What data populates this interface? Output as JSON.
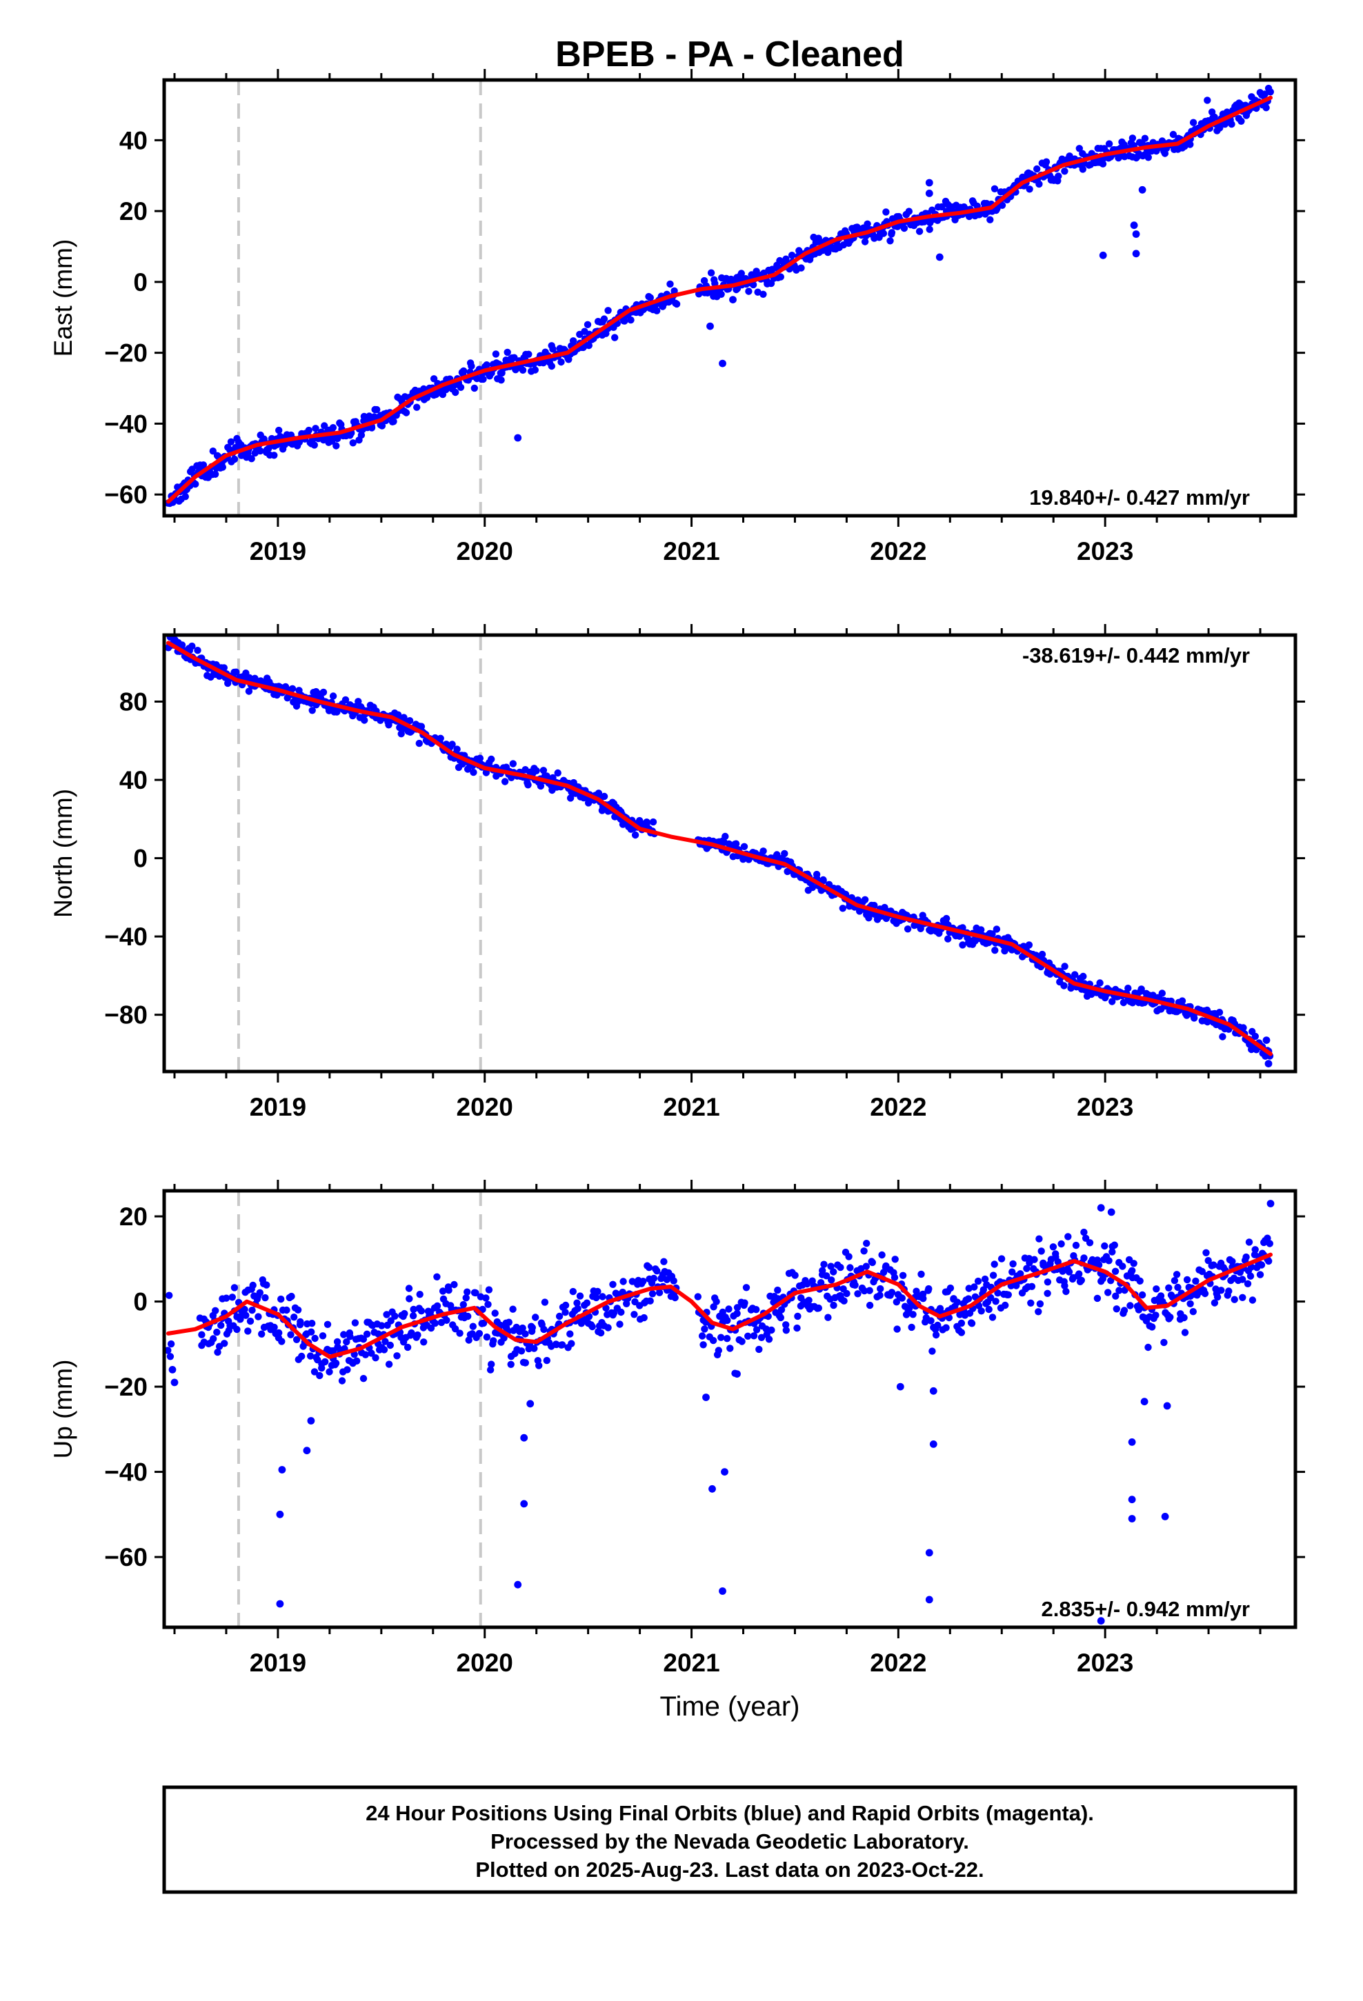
{
  "title": "BPEB  - PA - Cleaned",
  "xlabel": "Time (year)",
  "footer": {
    "line1": "24 Hour Positions Using Final Orbits (blue) and Rapid Orbits (magenta).",
    "line2": "Processed by the Nevada Geodetic Laboratory.",
    "line3": "Plotted on 2025-Aug-23. Last data on 2023-Oct-22."
  },
  "colors": {
    "points": "#0000ff",
    "fit": "#ff0000",
    "steps": "#c8c8c8",
    "axes": "#000000"
  },
  "chart_data": [
    {
      "type": "scatter",
      "ylabel": "East (mm)",
      "rate_label": "19.840+/- 0.427 mm/yr",
      "rate_position": "bottom-right",
      "xlim": [
        2018.45,
        2023.92
      ],
      "ylim": [
        -66,
        57
      ],
      "yticks": [
        -60,
        -40,
        -20,
        0,
        20,
        40
      ],
      "xticks": [
        2019,
        2020,
        2021,
        2022,
        2023
      ],
      "xtick_labels": [
        "2019",
        "2020",
        "2021",
        "2022",
        "2023"
      ],
      "step_lines": [
        2018.81,
        2019.98
      ],
      "fit": {
        "x": [
          2018.47,
          2018.6,
          2018.75,
          2018.9,
          2019.1,
          2019.3,
          2019.5,
          2019.65,
          2019.8,
          2020.0,
          2020.2,
          2020.4,
          2020.55,
          2020.7,
          2020.9,
          2021.05,
          2021.2,
          2021.4,
          2021.55,
          2021.7,
          2021.85,
          2022.0,
          2022.15,
          2022.3,
          2022.45,
          2022.6,
          2022.8,
          2023.0,
          2023.2,
          2023.35,
          2023.5,
          2023.65,
          2023.8
        ],
        "y": [
          -62,
          -55,
          -49,
          -46,
          -44,
          -42.5,
          -39,
          -33,
          -29,
          -25,
          -22.5,
          -20,
          -14,
          -8,
          -4,
          -2,
          -1,
          2,
          8,
          12,
          14,
          17,
          18.5,
          19.5,
          21,
          28,
          33,
          36,
          38,
          39,
          44,
          48,
          52
        ]
      },
      "points": {
        "model": [
          [
            2018.47,
            -62
          ],
          [
            2018.6,
            -55
          ],
          [
            2018.75,
            -49
          ],
          [
            2018.9,
            -46
          ],
          [
            2019.1,
            -44
          ],
          [
            2019.3,
            -42.5
          ],
          [
            2019.5,
            -39
          ],
          [
            2019.65,
            -33
          ],
          [
            2019.8,
            -29
          ],
          [
            2020.0,
            -25
          ],
          [
            2020.2,
            -22.5
          ],
          [
            2020.4,
            -20
          ],
          [
            2020.55,
            -14
          ],
          [
            2020.7,
            -8
          ],
          [
            2020.9,
            -4
          ],
          [
            2021.05,
            -2
          ],
          [
            2021.2,
            -1
          ],
          [
            2021.4,
            2
          ],
          [
            2021.55,
            8
          ],
          [
            2021.7,
            12
          ],
          [
            2021.85,
            14
          ],
          [
            2022.0,
            17
          ],
          [
            2022.15,
            18.5
          ],
          [
            2022.3,
            19.5
          ],
          [
            2022.45,
            21
          ],
          [
            2022.6,
            28
          ],
          [
            2022.8,
            33
          ],
          [
            2023.0,
            36
          ],
          [
            2023.2,
            38
          ],
          [
            2023.35,
            39
          ],
          [
            2023.5,
            44
          ],
          [
            2023.65,
            48
          ],
          [
            2023.8,
            52
          ]
        ],
        "gaps": [
          [
            2020.93,
            2021.03
          ],
          [
            2023.81,
            2023.92
          ]
        ],
        "dense_gaps": [],
        "scatter_sd": 1.6,
        "seasonal_amp": 0,
        "spacing_days": 2,
        "seed": 11,
        "outliers": [
          [
            2020.16,
            -44
          ],
          [
            2021.09,
            -12.5
          ],
          [
            2021.15,
            -23
          ],
          [
            2022.2,
            7
          ],
          [
            2022.99,
            7.5
          ],
          [
            2023.15,
            8
          ],
          [
            2023.14,
            16
          ],
          [
            2023.15,
            13.5
          ],
          [
            2023.18,
            26
          ],
          [
            2021.2,
            -5
          ],
          [
            2022.15,
            28
          ],
          [
            2022.15,
            25
          ]
        ]
      }
    },
    {
      "type": "scatter",
      "ylabel": "North (mm)",
      "rate_label": "-38.619+/- 0.442 mm/yr",
      "rate_position": "top-right",
      "xlim": [
        2018.45,
        2023.92
      ],
      "ylim": [
        -109,
        114
      ],
      "yticks": [
        -80,
        -40,
        0,
        40,
        80
      ],
      "xticks": [
        2019,
        2020,
        2021,
        2022,
        2023
      ],
      "xtick_labels": [
        "2019",
        "2020",
        "2021",
        "2022",
        "2023"
      ],
      "step_lines": [
        2018.81,
        2019.98
      ],
      "fit": {
        "x": [
          2018.47,
          2018.6,
          2018.8,
          2019.0,
          2019.2,
          2019.4,
          2019.55,
          2019.7,
          2019.85,
          2020.0,
          2020.2,
          2020.4,
          2020.55,
          2020.75,
          2020.9,
          2021.1,
          2021.3,
          2021.45,
          2021.6,
          2021.8,
          2022.0,
          2022.2,
          2022.4,
          2022.55,
          2022.7,
          2022.85,
          2023.0,
          2023.2,
          2023.4,
          2023.6,
          2023.8
        ],
        "y": [
          110,
          102,
          91,
          86,
          80,
          75,
          72,
          64,
          53,
          46,
          42,
          37,
          30,
          15,
          11,
          7,
          1,
          -3,
          -12,
          -24,
          -30,
          -35,
          -40,
          -44,
          -54,
          -64,
          -68,
          -72,
          -77,
          -85,
          -100
        ]
      },
      "points": {
        "model": [
          [
            2018.47,
            110
          ],
          [
            2018.6,
            102
          ],
          [
            2018.8,
            91
          ],
          [
            2019.0,
            86
          ],
          [
            2019.2,
            80
          ],
          [
            2019.4,
            75
          ],
          [
            2019.55,
            72
          ],
          [
            2019.7,
            64
          ],
          [
            2019.85,
            53
          ],
          [
            2020.0,
            46
          ],
          [
            2020.2,
            42
          ],
          [
            2020.4,
            37
          ],
          [
            2020.55,
            30
          ],
          [
            2020.75,
            15
          ],
          [
            2020.9,
            11
          ],
          [
            2021.1,
            7
          ],
          [
            2021.3,
            1
          ],
          [
            2021.45,
            -3
          ],
          [
            2021.6,
            -12
          ],
          [
            2021.8,
            -24
          ],
          [
            2022.0,
            -30
          ],
          [
            2022.2,
            -35
          ],
          [
            2022.4,
            -40
          ],
          [
            2022.55,
            -44
          ],
          [
            2022.7,
            -54
          ],
          [
            2022.85,
            -64
          ],
          [
            2023.0,
            -68
          ],
          [
            2023.2,
            -72
          ],
          [
            2023.4,
            -77
          ],
          [
            2023.6,
            -85
          ],
          [
            2023.8,
            -100
          ]
        ],
        "gaps": [
          [
            2020.82,
            2021.03
          ],
          [
            2023.81,
            2023.92
          ]
        ],
        "dense_gaps": [],
        "scatter_sd": 2.2,
        "seasonal_amp": 0,
        "spacing_days": 2,
        "seed": 23,
        "outliers": [
          [
            2023.79,
            -105
          ],
          [
            2023.78,
            -93
          ],
          [
            2018.48,
            113
          ]
        ]
      }
    },
    {
      "type": "scatter",
      "ylabel": "Up (mm)",
      "rate_label": "2.835+/- 0.942 mm/yr",
      "rate_position": "bottom-right",
      "xlim": [
        2018.45,
        2023.92
      ],
      "ylim": [
        -76.5,
        26
      ],
      "yticks": [
        -60,
        -40,
        -20,
        0,
        20
      ],
      "xticks": [
        2019,
        2020,
        2021,
        2022,
        2023
      ],
      "xtick_labels": [
        "2019",
        "2020",
        "2021",
        "2022",
        "2023"
      ],
      "step_lines": [
        2018.81,
        2019.98
      ],
      "fit": {
        "x": [
          2018.47,
          2018.6,
          2018.75,
          2018.85,
          2019.0,
          2019.15,
          2019.25,
          2019.4,
          2019.6,
          2019.8,
          2019.95,
          2020.05,
          2020.15,
          2020.25,
          2020.4,
          2020.6,
          2020.8,
          2020.9,
          2021.0,
          2021.1,
          2021.2,
          2021.35,
          2021.5,
          2021.7,
          2021.85,
          2022.0,
          2022.1,
          2022.2,
          2022.35,
          2022.5,
          2022.7,
          2022.85,
          2023.0,
          2023.1,
          2023.2,
          2023.3,
          2023.5,
          2023.65,
          2023.8
        ],
        "y": [
          -7.5,
          -6.5,
          -3.5,
          0,
          -3,
          -10,
          -13,
          -11,
          -6,
          -3,
          -1.5,
          -6,
          -9,
          -9.5,
          -5,
          0,
          3,
          3.5,
          0,
          -5,
          -6.5,
          -3,
          2,
          4,
          7,
          4,
          -1,
          -3.5,
          -1,
          4,
          7,
          9.5,
          7,
          4,
          -1.5,
          -1,
          5,
          8,
          11
        ]
      },
      "points": {
        "model": [
          [
            2018.47,
            -7.5
          ],
          [
            2018.6,
            -6.5
          ],
          [
            2018.75,
            -3.5
          ],
          [
            2018.85,
            0
          ],
          [
            2019.0,
            -3
          ],
          [
            2019.15,
            -10
          ],
          [
            2019.25,
            -13
          ],
          [
            2019.4,
            -11
          ],
          [
            2019.6,
            -6
          ],
          [
            2019.8,
            -3
          ],
          [
            2019.95,
            -1.5
          ],
          [
            2020.05,
            -6
          ],
          [
            2020.15,
            -9
          ],
          [
            2020.25,
            -9.5
          ],
          [
            2020.4,
            -5
          ],
          [
            2020.6,
            0
          ],
          [
            2020.8,
            3
          ],
          [
            2020.9,
            3.5
          ],
          [
            2021.0,
            0
          ],
          [
            2021.1,
            -5
          ],
          [
            2021.2,
            -6.5
          ],
          [
            2021.35,
            -3
          ],
          [
            2021.5,
            2
          ],
          [
            2021.7,
            4
          ],
          [
            2021.85,
            7
          ],
          [
            2022.0,
            4
          ],
          [
            2022.1,
            -1
          ],
          [
            2022.2,
            -3.5
          ],
          [
            2022.35,
            -1
          ],
          [
            2022.5,
            4
          ],
          [
            2022.7,
            7
          ],
          [
            2022.85,
            9.5
          ],
          [
            2023.0,
            7
          ],
          [
            2023.1,
            4
          ],
          [
            2023.2,
            -1.5
          ],
          [
            2023.3,
            -1
          ],
          [
            2023.5,
            5
          ],
          [
            2023.65,
            8
          ],
          [
            2023.8,
            11
          ]
        ],
        "gaps": [
          [
            2020.93,
            2021.03
          ],
          [
            2023.81,
            2023.92
          ],
          [
            2018.49,
            2018.62
          ]
        ],
        "dense_gaps": [],
        "scatter_sd": 3.6,
        "seasonal_amp": 0,
        "spacing_days": 2,
        "seed": 37,
        "outliers": [
          [
            2019.01,
            -71
          ],
          [
            2019.01,
            -50
          ],
          [
            2019.02,
            -39.5
          ],
          [
            2019.14,
            -35
          ],
          [
            2019.16,
            -28
          ],
          [
            2020.16,
            -66.5
          ],
          [
            2020.19,
            -47.5
          ],
          [
            2020.19,
            -32
          ],
          [
            2020.22,
            -24
          ],
          [
            2021.1,
            -44
          ],
          [
            2021.16,
            -40
          ],
          [
            2021.15,
            -68
          ],
          [
            2021.07,
            -22.5
          ],
          [
            2022.15,
            -59
          ],
          [
            2022.15,
            -70
          ],
          [
            2022.17,
            -33.5
          ],
          [
            2022.17,
            -21
          ],
          [
            2023.13,
            -46.5
          ],
          [
            2023.13,
            -51
          ],
          [
            2023.13,
            -33
          ],
          [
            2023.19,
            -23.5
          ],
          [
            2023.29,
            -50.5
          ],
          [
            2023.3,
            -24.5
          ],
          [
            2022.98,
            -75
          ],
          [
            2018.5,
            -19
          ],
          [
            2018.49,
            -16
          ],
          [
            2021.22,
            -17
          ],
          [
            2022.01,
            -20
          ],
          [
            2023.8,
            23
          ],
          [
            2022.98,
            22
          ],
          [
            2023.03,
            21
          ]
        ]
      }
    }
  ]
}
